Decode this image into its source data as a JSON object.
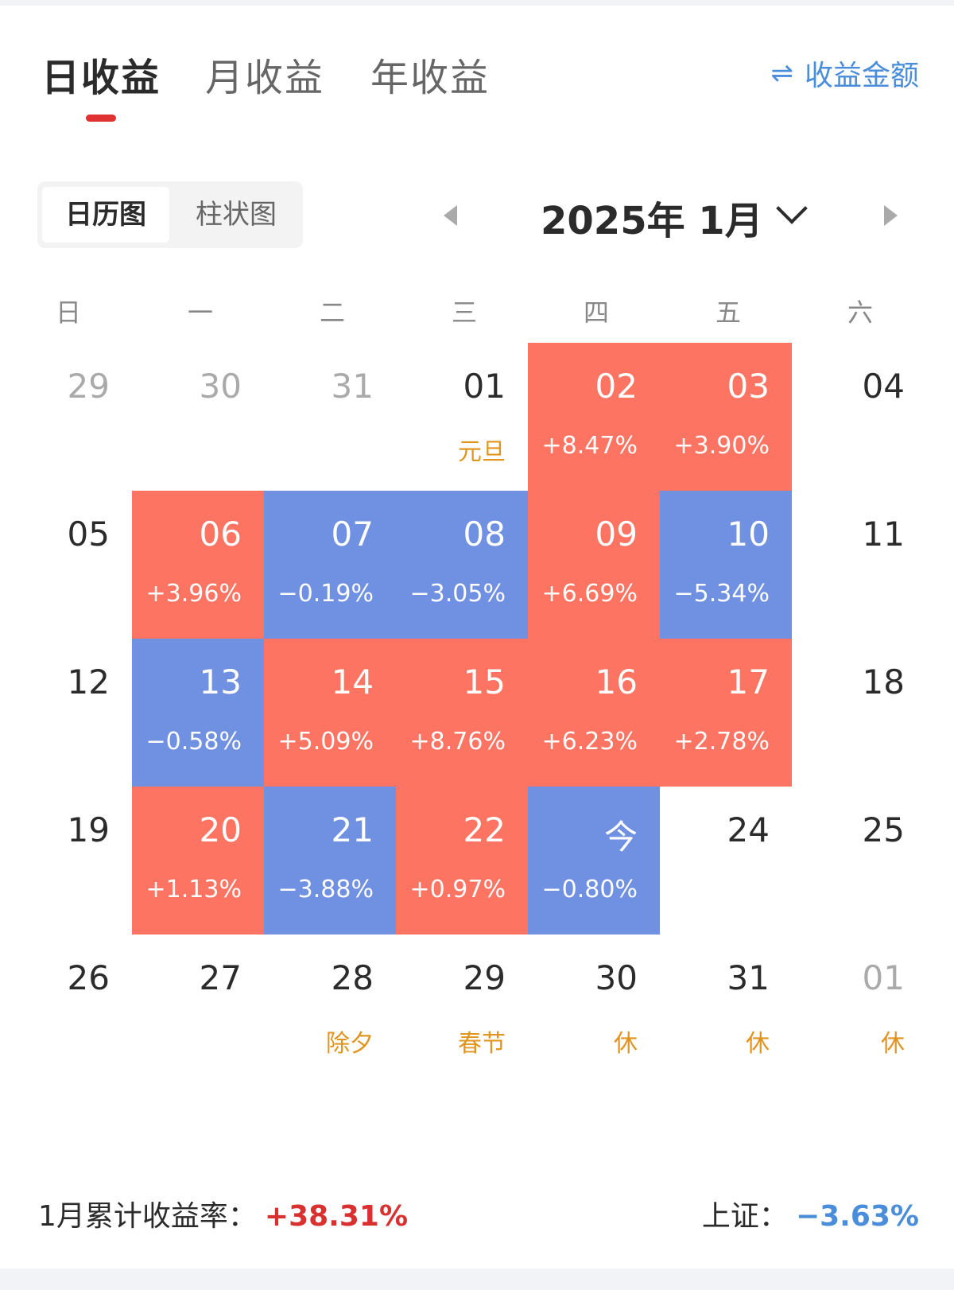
{
  "tabs": [
    {
      "label": "日收益",
      "active": true
    },
    {
      "label": "月收益",
      "active": false
    },
    {
      "label": "年收益",
      "active": false
    }
  ],
  "toggle": {
    "icon": "swap-arrows-icon",
    "glyph": "⇌",
    "label": "收益金额"
  },
  "view_switch": {
    "active": "日历图",
    "inactive": "柱状图"
  },
  "month_nav": {
    "title": "2025年 1月",
    "prev_icon": "caret-left-icon",
    "next_icon": "caret-right-icon"
  },
  "weekdays": [
    "日",
    "一",
    "二",
    "三",
    "四",
    "五",
    "六"
  ],
  "colors": {
    "up": "#fd7562",
    "down": "#7091e1",
    "holiday": "#e0951f",
    "total_up": "#d93030",
    "index_down": "#4a8ddb",
    "tab_underline": "#e03232"
  },
  "calendar": [
    [
      {
        "date": "29",
        "type": "other"
      },
      {
        "date": "30",
        "type": "other"
      },
      {
        "date": "31",
        "type": "other"
      },
      {
        "date": "01",
        "type": "normal",
        "note": "元旦"
      },
      {
        "date": "02",
        "type": "up",
        "value": "+8.47%"
      },
      {
        "date": "03",
        "type": "up",
        "value": "+3.90%"
      },
      {
        "date": "04",
        "type": "normal"
      }
    ],
    [
      {
        "date": "05",
        "type": "normal"
      },
      {
        "date": "06",
        "type": "up",
        "value": "+3.96%"
      },
      {
        "date": "07",
        "type": "down",
        "value": "−0.19%"
      },
      {
        "date": "08",
        "type": "down",
        "value": "−3.05%"
      },
      {
        "date": "09",
        "type": "up",
        "value": "+6.69%"
      },
      {
        "date": "10",
        "type": "down",
        "value": "−5.34%"
      },
      {
        "date": "11",
        "type": "normal"
      }
    ],
    [
      {
        "date": "12",
        "type": "normal"
      },
      {
        "date": "13",
        "type": "down",
        "value": "−0.58%"
      },
      {
        "date": "14",
        "type": "up",
        "value": "+5.09%"
      },
      {
        "date": "15",
        "type": "up",
        "value": "+8.76%"
      },
      {
        "date": "16",
        "type": "up",
        "value": "+6.23%"
      },
      {
        "date": "17",
        "type": "up",
        "value": "+2.78%"
      },
      {
        "date": "18",
        "type": "normal"
      }
    ],
    [
      {
        "date": "19",
        "type": "normal"
      },
      {
        "date": "20",
        "type": "up",
        "value": "+1.13%"
      },
      {
        "date": "21",
        "type": "down",
        "value": "−3.88%"
      },
      {
        "date": "22",
        "type": "up",
        "value": "+0.97%"
      },
      {
        "date": "今",
        "type": "down",
        "value": "−0.80%"
      },
      {
        "date": "24",
        "type": "normal"
      },
      {
        "date": "25",
        "type": "normal"
      }
    ],
    [
      {
        "date": "26",
        "type": "normal"
      },
      {
        "date": "27",
        "type": "normal"
      },
      {
        "date": "28",
        "type": "normal",
        "note": "除夕"
      },
      {
        "date": "29",
        "type": "normal",
        "note": "春节"
      },
      {
        "date": "30",
        "type": "normal",
        "note": "休"
      },
      {
        "date": "31",
        "type": "normal",
        "note": "休"
      },
      {
        "date": "01",
        "type": "other",
        "note": "休"
      }
    ]
  ],
  "summary": {
    "cumulative_label": "1月累计收益率：",
    "cumulative_value": "+38.31%",
    "index_label": "上证：",
    "index_value": "−3.63%"
  }
}
